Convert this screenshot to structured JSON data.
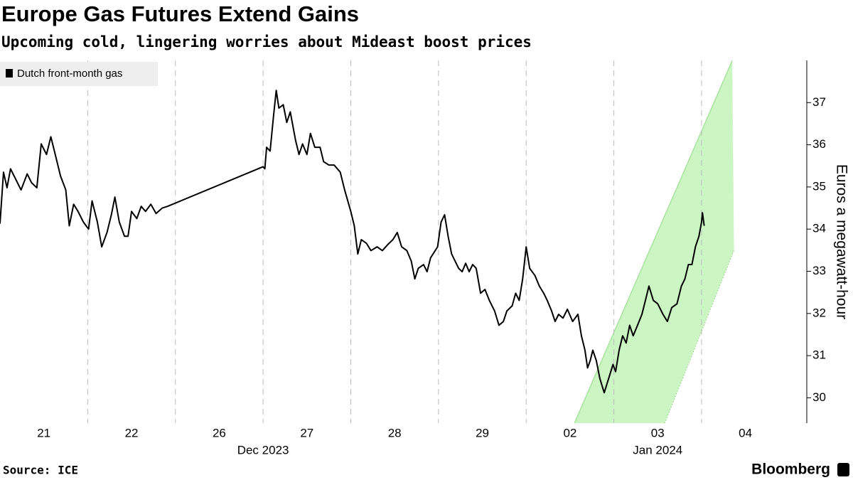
{
  "chart_data": {
    "type": "line",
    "title": "Europe Gas Futures Extend Gains",
    "subtitle": "Upcoming cold, lingering worries about Mideast boost prices",
    "y_label": "Euros a megawatt-hour",
    "source": "Source: ICE",
    "brand": "Bloomberg",
    "legend": "top-left",
    "xlim": [
      0,
      9.2
    ],
    "xticks": [
      {
        "value": 0.5,
        "label": "21"
      },
      {
        "value": 1.5,
        "label": "22"
      },
      {
        "value": 2.5,
        "label": "26"
      },
      {
        "value": 3.5,
        "label": "27"
      },
      {
        "value": 4.5,
        "label": "28"
      },
      {
        "value": 5.5,
        "label": "29"
      },
      {
        "value": 6.5,
        "label": "02"
      },
      {
        "value": 7.5,
        "label": "03"
      },
      {
        "value": 8.5,
        "label": "04"
      }
    ],
    "xgrid": [
      1,
      2,
      3,
      4,
      5,
      6,
      7,
      8
    ],
    "xgroups": [
      {
        "value": 3,
        "label": "Dec 2023"
      },
      {
        "value": 7.5,
        "label": "Jan 2024"
      }
    ],
    "ylim": [
      29.4,
      38
    ],
    "yticks": [
      30,
      31,
      32,
      33,
      34,
      35,
      36,
      37
    ],
    "channel": {
      "color": "#ccf5c4",
      "upper": [
        [
          6.55,
          29.4
        ],
        [
          8.35,
          38
        ]
      ],
      "lower": [
        [
          7.58,
          29.4
        ],
        [
          8.37,
          33.5
        ]
      ]
    },
    "x": [
      0,
      0.04,
      0.08,
      0.12,
      0.18,
      0.24,
      0.31,
      0.36,
      0.42,
      0.47,
      0.53,
      0.58,
      0.63,
      0.69,
      0.75,
      0.79,
      0.84,
      0.89,
      0.95,
      1.01,
      1.05,
      1.11,
      1.16,
      1.22,
      1.27,
      1.31,
      1.36,
      1.42,
      1.46,
      1.5,
      1.56,
      1.61,
      1.66,
      1.72,
      1.78,
      1.85,
      1.91,
      3.0,
      3.02,
      3.04,
      3.08,
      3.12,
      3.15,
      3.18,
      3.23,
      3.27,
      3.31,
      3.37,
      3.41,
      3.45,
      3.5,
      3.54,
      3.59,
      3.65,
      3.69,
      3.75,
      3.81,
      3.88,
      3.93,
      4.0,
      4.04,
      4.08,
      4.12,
      4.18,
      4.23,
      4.3,
      4.36,
      4.42,
      4.48,
      4.53,
      4.58,
      4.64,
      4.69,
      4.73,
      4.77,
      4.83,
      4.87,
      4.91,
      4.99,
      5.03,
      5.07,
      5.11,
      5.15,
      5.19,
      5.23,
      5.27,
      5.31,
      5.35,
      5.39,
      5.43,
      5.48,
      5.53,
      5.58,
      5.64,
      5.69,
      5.74,
      5.78,
      5.84,
      5.88,
      5.92,
      5.96,
      6.0,
      6.04,
      6.1,
      6.15,
      6.2,
      6.24,
      6.29,
      6.33,
      6.37,
      6.42,
      6.47,
      6.53,
      6.59,
      6.63,
      6.67,
      6.7,
      6.73,
      6.76,
      6.8,
      6.84,
      6.89,
      6.99,
      7.02,
      7.06,
      7.1,
      7.14,
      7.18,
      7.22,
      7.27,
      7.32,
      7.36,
      7.4,
      7.45,
      7.5,
      7.56,
      7.61,
      7.66,
      7.72,
      7.77,
      7.81,
      7.85,
      7.89,
      7.93,
      7.97,
      8.0,
      8.01,
      8.03
    ],
    "series": [
      {
        "name": "Dutch front-month gas",
        "color": "#000000",
        "values": [
          34.13,
          35.35,
          34.98,
          35.43,
          35.18,
          34.93,
          35.31,
          35.1,
          34.98,
          36.02,
          35.77,
          36.19,
          35.77,
          35.26,
          34.93,
          34.08,
          34.59,
          34.42,
          34.17,
          34.0,
          34.67,
          34.17,
          33.58,
          33.92,
          34.34,
          34.76,
          34.17,
          33.83,
          33.83,
          34.42,
          34.25,
          34.54,
          34.42,
          34.59,
          34.37,
          34.5,
          34.54,
          35.48,
          35.43,
          35.94,
          35.85,
          36.7,
          37.29,
          36.87,
          36.95,
          36.53,
          36.78,
          36.11,
          35.77,
          36.02,
          35.77,
          36.27,
          35.94,
          35.94,
          35.6,
          35.52,
          35.52,
          35.35,
          34.93,
          34.42,
          34.08,
          33.41,
          33.75,
          33.66,
          33.49,
          33.58,
          33.49,
          33.63,
          33.75,
          33.92,
          33.58,
          33.49,
          33.24,
          32.82,
          33.07,
          33.16,
          32.99,
          33.32,
          33.58,
          34.17,
          34.34,
          33.83,
          33.41,
          33.24,
          33.07,
          32.99,
          33.19,
          32.99,
          33.16,
          33.07,
          32.48,
          32.57,
          32.31,
          32.06,
          31.72,
          31.81,
          32.06,
          32.18,
          32.48,
          32.31,
          32.82,
          33.58,
          33.07,
          32.9,
          32.65,
          32.48,
          32.31,
          32.06,
          31.81,
          31.98,
          31.89,
          32.1,
          31.81,
          31.98,
          31.47,
          31.13,
          30.71,
          30.88,
          31.13,
          30.88,
          30.46,
          30.12,
          30.79,
          30.62,
          31.13,
          31.47,
          31.3,
          31.72,
          31.47,
          31.72,
          31.98,
          32.31,
          32.65,
          32.31,
          32.23,
          31.98,
          31.81,
          32.14,
          32.23,
          32.65,
          32.82,
          33.16,
          33.16,
          33.58,
          33.83,
          34.17,
          34.39,
          34.08
        ]
      }
    ]
  }
}
